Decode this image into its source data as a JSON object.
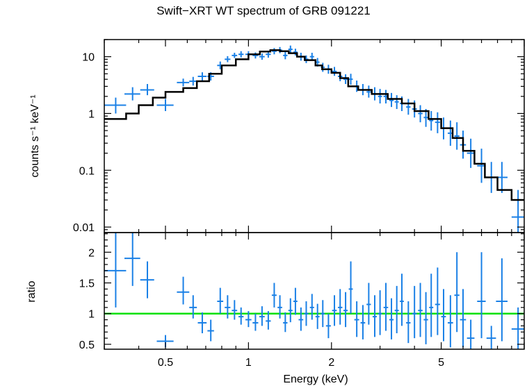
{
  "title": "Swift−XRT WT spectrum of GRB 091221",
  "colors": {
    "data": "#1a80e6",
    "model": "#000000",
    "unity": "#00e000",
    "frame": "#000000"
  },
  "chart_data": [
    {
      "type": "scatter",
      "panel": "spectrum",
      "xlabel": "Energy (keV)",
      "ylabel": "counts s⁻¹ keV⁻¹",
      "x_scale": "log",
      "y_scale": "log",
      "xlim": [
        0.3,
        10
      ],
      "ylim": [
        0.008,
        20
      ],
      "y_ticks": [
        "0.01",
        "0.1",
        "1",
        "10"
      ],
      "series": [
        {
          "role": "data",
          "x": [
            0.33,
            0.38,
            0.43,
            0.5,
            0.58,
            0.63,
            0.68,
            0.73,
            0.79,
            0.84,
            0.89,
            0.94,
            1.0,
            1.06,
            1.12,
            1.18,
            1.24,
            1.3,
            1.36,
            1.42,
            1.48,
            1.55,
            1.62,
            1.7,
            1.78,
            1.86,
            1.95,
            2.05,
            2.15,
            2.25,
            2.35,
            2.47,
            2.6,
            2.73,
            2.87,
            3.0,
            3.15,
            3.3,
            3.45,
            3.6,
            3.8,
            4.0,
            4.2,
            4.4,
            4.6,
            4.85,
            5.1,
            5.4,
            5.7,
            6.0,
            6.4,
            7.0,
            7.6,
            8.3,
            9.5
          ],
          "xerr": [
            0.03,
            0.025,
            0.025,
            0.035,
            0.03,
            0.02,
            0.025,
            0.02,
            0.02,
            0.02,
            0.02,
            0.02,
            0.025,
            0.025,
            0.025,
            0.025,
            0.025,
            0.025,
            0.025,
            0.025,
            0.025,
            0.03,
            0.03,
            0.03,
            0.03,
            0.03,
            0.04,
            0.04,
            0.04,
            0.04,
            0.04,
            0.05,
            0.05,
            0.05,
            0.05,
            0.05,
            0.06,
            0.06,
            0.06,
            0.06,
            0.07,
            0.08,
            0.08,
            0.08,
            0.08,
            0.1,
            0.1,
            0.12,
            0.12,
            0.15,
            0.2,
            0.25,
            0.3,
            0.4,
            0.5
          ],
          "y": [
            1.4,
            2.2,
            2.6,
            1.4,
            3.5,
            3.7,
            4.5,
            4.5,
            7.0,
            9.0,
            10.5,
            11.0,
            11.0,
            10.5,
            10.0,
            11.0,
            12.5,
            13.0,
            10.5,
            13.5,
            12.0,
            10.0,
            9.0,
            10.0,
            8.0,
            6.5,
            6.0,
            5.5,
            4.5,
            4.0,
            4.0,
            3.0,
            2.6,
            2.4,
            2.2,
            2.0,
            2.0,
            1.7,
            1.6,
            1.5,
            1.3,
            1.2,
            1.0,
            0.85,
            0.75,
            0.7,
            0.55,
            0.45,
            0.4,
            0.28,
            0.2,
            0.12,
            0.075,
            0.075,
            0.015
          ],
          "ylo": [
            1.0,
            1.7,
            2.1,
            1.1,
            3.0,
            3.1,
            3.8,
            3.8,
            6.0,
            8.0,
            9.5,
            9.7,
            9.7,
            9.3,
            8.8,
            9.6,
            11.0,
            11.5,
            9.0,
            11.5,
            10.5,
            8.5,
            7.7,
            8.5,
            6.7,
            5.4,
            5.0,
            4.6,
            3.7,
            3.3,
            3.2,
            2.4,
            2.1,
            1.9,
            1.7,
            1.5,
            1.5,
            1.3,
            1.2,
            1.1,
            0.95,
            0.85,
            0.7,
            0.58,
            0.5,
            0.45,
            0.35,
            0.27,
            0.23,
            0.16,
            0.11,
            0.06,
            0.04,
            0.04,
            0.005
          ],
          "yhi": [
            1.9,
            2.9,
            3.3,
            1.8,
            4.1,
            4.4,
            5.3,
            5.3,
            8.2,
            10.2,
            11.7,
            12.5,
            12.5,
            11.9,
            11.4,
            12.6,
            14.2,
            14.8,
            12.2,
            15.7,
            13.8,
            11.7,
            10.5,
            11.7,
            9.5,
            7.8,
            7.2,
            6.6,
            5.4,
            4.9,
            5.0,
            3.8,
            3.3,
            3.1,
            2.9,
            2.7,
            2.6,
            2.3,
            2.1,
            2.0,
            1.8,
            1.7,
            1.4,
            1.2,
            1.1,
            1.05,
            0.85,
            0.75,
            0.7,
            0.5,
            0.36,
            0.24,
            0.14,
            0.14,
            0.045
          ]
        },
        {
          "role": "model",
          "x": [
            0.3,
            0.36,
            0.4,
            0.45,
            0.5,
            0.58,
            0.65,
            0.72,
            0.8,
            0.9,
            1.0,
            1.1,
            1.2,
            1.3,
            1.4,
            1.5,
            1.6,
            1.75,
            1.85,
            2.0,
            2.15,
            2.3,
            2.5,
            2.8,
            3.2,
            3.6,
            4.0,
            4.5,
            5.0,
            5.5,
            6.0,
            6.6,
            7.2,
            8.0,
            9.0,
            10.0
          ],
          "y": [
            0.8,
            1.0,
            1.4,
            1.9,
            2.4,
            2.8,
            3.7,
            5.0,
            7.0,
            9.0,
            11.0,
            12.3,
            13.0,
            12.5,
            11.5,
            10.0,
            8.7,
            7.0,
            6.0,
            5.2,
            4.2,
            3.0,
            2.6,
            2.2,
            1.8,
            1.5,
            1.1,
            0.8,
            0.55,
            0.37,
            0.22,
            0.13,
            0.075,
            0.045,
            0.03,
            0.03
          ]
        }
      ]
    },
    {
      "type": "scatter",
      "panel": "ratio",
      "xlabel": "Energy (keV)",
      "ylabel": "ratio",
      "x_scale": "log",
      "xlim": [
        0.3,
        10
      ],
      "ylim": [
        0.42,
        2.32
      ],
      "x_ticks": [
        "0.5",
        "1",
        "2",
        "5"
      ],
      "y_ticks": [
        "0.5",
        "1",
        "1.5",
        "2"
      ],
      "reference_line": 1,
      "series": [
        {
          "role": "data",
          "x": [
            0.33,
            0.38,
            0.43,
            0.5,
            0.58,
            0.63,
            0.68,
            0.73,
            0.79,
            0.84,
            0.89,
            0.94,
            1.0,
            1.06,
            1.12,
            1.18,
            1.24,
            1.3,
            1.36,
            1.42,
            1.48,
            1.55,
            1.62,
            1.7,
            1.78,
            1.86,
            1.95,
            2.05,
            2.15,
            2.25,
            2.35,
            2.47,
            2.6,
            2.73,
            2.87,
            3.0,
            3.15,
            3.3,
            3.45,
            3.6,
            3.8,
            4.0,
            4.2,
            4.4,
            4.6,
            4.85,
            5.1,
            5.4,
            5.7,
            6.0,
            6.4,
            7.0,
            7.6,
            8.3,
            9.5
          ],
          "xerr": [
            0.03,
            0.025,
            0.025,
            0.035,
            0.03,
            0.02,
            0.025,
            0.02,
            0.02,
            0.02,
            0.02,
            0.02,
            0.025,
            0.025,
            0.025,
            0.025,
            0.025,
            0.025,
            0.025,
            0.025,
            0.025,
            0.03,
            0.03,
            0.03,
            0.03,
            0.03,
            0.04,
            0.04,
            0.04,
            0.04,
            0.04,
            0.05,
            0.05,
            0.05,
            0.05,
            0.05,
            0.06,
            0.06,
            0.06,
            0.06,
            0.07,
            0.08,
            0.08,
            0.08,
            0.08,
            0.1,
            0.1,
            0.12,
            0.12,
            0.15,
            0.2,
            0.25,
            0.3,
            0.4,
            0.5
          ],
          "y": [
            1.7,
            1.9,
            1.55,
            0.55,
            1.35,
            1.1,
            0.85,
            0.72,
            1.2,
            1.1,
            1.05,
            0.95,
            0.9,
            0.85,
            0.95,
            0.88,
            1.3,
            1.1,
            0.85,
            1.05,
            1.2,
            0.9,
            1.0,
            1.1,
            0.95,
            1.0,
            0.8,
            1.05,
            1.1,
            1.05,
            1.4,
            0.9,
            0.85,
            1.15,
            0.95,
            1.0,
            1.1,
            0.9,
            1.05,
            1.2,
            0.85,
            1.0,
            1.05,
            0.9,
            1.1,
            1.15,
            0.95,
            0.85,
            1.3,
            0.9,
            0.6,
            1.2,
            0.6,
            1.2,
            0.75
          ],
          "ylo": [
            1.1,
            1.45,
            1.25,
            0.45,
            1.15,
            0.92,
            0.68,
            0.55,
            1.0,
            0.92,
            0.9,
            0.82,
            0.78,
            0.72,
            0.8,
            0.74,
            1.1,
            0.92,
            0.7,
            0.86,
            0.98,
            0.72,
            0.8,
            0.9,
            0.75,
            0.78,
            0.6,
            0.8,
            0.82,
            0.78,
            1.0,
            0.62,
            0.58,
            0.82,
            0.62,
            0.65,
            0.72,
            0.58,
            0.68,
            0.8,
            0.52,
            0.6,
            0.62,
            0.5,
            0.62,
            0.65,
            0.55,
            0.45,
            0.7,
            0.45,
            0.42,
            0.6,
            0.42,
            0.55,
            0.42
          ],
          "yhi": [
            2.32,
            2.32,
            1.85,
            0.65,
            1.6,
            1.3,
            1.02,
            0.9,
            1.42,
            1.3,
            1.22,
            1.1,
            1.04,
            1.0,
            1.12,
            1.04,
            1.5,
            1.3,
            1.02,
            1.25,
            1.42,
            1.1,
            1.2,
            1.32,
            1.16,
            1.22,
            1.0,
            1.3,
            1.4,
            1.35,
            1.85,
            1.2,
            1.14,
            1.5,
            1.3,
            1.38,
            1.5,
            1.25,
            1.45,
            1.65,
            1.2,
            1.45,
            1.5,
            1.35,
            1.65,
            1.75,
            1.4,
            1.3,
            2.0,
            1.4,
            0.9,
            2.0,
            0.8,
            1.9,
            1.1
          ]
        }
      ]
    }
  ]
}
